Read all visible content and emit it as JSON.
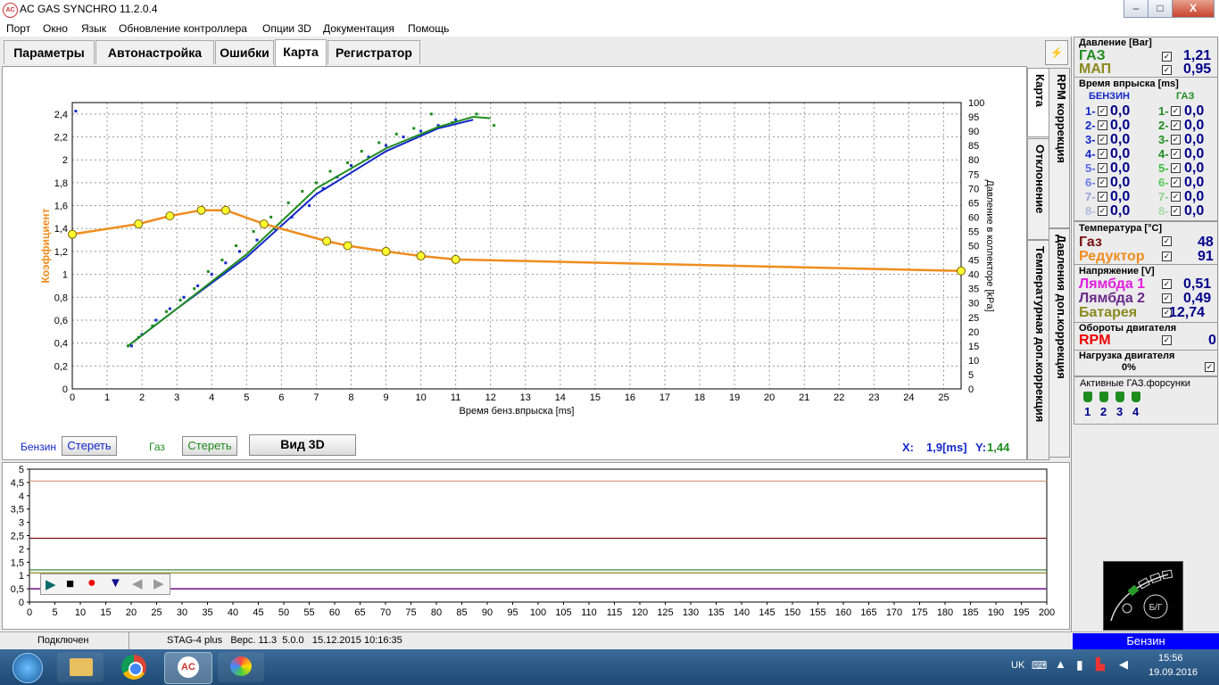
{
  "window": {
    "title": "AC GAS SYNCHRO  11.2.0.4",
    "icon": "ac-logo-icon",
    "min": "–",
    "max": "□",
    "close": "X"
  },
  "menu": [
    "Порт",
    "Окно",
    "Язык",
    "Обновление контроллера",
    "Опции 3D",
    "Документация",
    "Помощь"
  ],
  "tabs": [
    "Параметры",
    "Автонастройка",
    "Ошибки",
    "Карта",
    "Регистратор"
  ],
  "active_tab": "Карта",
  "side_tabs": [
    "Карта",
    "RPM коррекция",
    "Отклонение",
    "Давления доп.коррекция",
    "Температурная доп.коррекция"
  ],
  "chart": {
    "ylabel_left": "Коэффициент",
    "ylabel_right": "Давление в коллекторе [kPa]",
    "xlabel": "Время бенз.впрыска [ms]",
    "x_ticks": [
      "0",
      "1",
      "2",
      "3",
      "4",
      "5",
      "6",
      "7",
      "8",
      "9",
      "10",
      "11",
      "12",
      "13",
      "14",
      "15",
      "16",
      "17",
      "18",
      "19",
      "20",
      "21",
      "22",
      "23",
      "24",
      "25"
    ],
    "y_ticks": [
      "0",
      "0,2",
      "0,4",
      "0,6",
      "0,8",
      "1",
      "1,2",
      "1,4",
      "1,6",
      "1,8",
      "2",
      "2,2",
      "2,4"
    ],
    "y2_ticks": [
      "0",
      "5",
      "10",
      "15",
      "20",
      "25",
      "30",
      "35",
      "40",
      "45",
      "50",
      "55",
      "60",
      "65",
      "70",
      "75",
      "80",
      "85",
      "90",
      "95",
      "100"
    ],
    "cursor_label_x": "X:",
    "cursor_x": "1,9[ms]",
    "cursor_label_y": "Y:",
    "cursor_y": "1,44"
  },
  "chart_data": {
    "type": "line",
    "xlabel": "Время бенз.впрыска [ms]",
    "ylabel": "Коэффициент",
    "y2label": "Давление в коллекторе [kPa]",
    "xlim": [
      0,
      25.5
    ],
    "ylim": [
      0,
      2.5
    ],
    "y2lim": [
      0,
      100
    ],
    "grid": true,
    "series": [
      {
        "role": "coefficient",
        "color": "#f08c1e",
        "x": [
          0,
          1.9,
          2.8,
          3.7,
          4.4,
          5.5,
          7.3,
          7.9,
          9.0,
          10.0,
          11.0,
          25.5
        ],
        "y": [
          1.35,
          1.44,
          1.51,
          1.56,
          1.56,
          1.44,
          1.29,
          1.25,
          1.2,
          1.16,
          1.13,
          1.03
        ],
        "points": [
          [
            0,
            1.35
          ],
          [
            1.9,
            1.44
          ],
          [
            2.8,
            1.51
          ],
          [
            3.7,
            1.56
          ],
          [
            4.4,
            1.56
          ],
          [
            5.5,
            1.44
          ],
          [
            7.3,
            1.29
          ],
          [
            7.9,
            1.25
          ],
          [
            9.0,
            1.2
          ],
          [
            10.0,
            1.16
          ],
          [
            11.0,
            1.13
          ],
          [
            25.5,
            1.03
          ]
        ]
      },
      {
        "role": "benzin-trend",
        "color": "#1428c8",
        "x": [
          1.6,
          3,
          5,
          7,
          9,
          10.5,
          11.5
        ],
        "y": [
          15,
          28,
          46,
          68,
          83,
          91,
          94
        ]
      },
      {
        "role": "gas-trend",
        "color": "#1e8c1e",
        "x": [
          1.6,
          3,
          5,
          7,
          9,
          10.5,
          11.5,
          12.0
        ],
        "y": [
          15,
          28,
          47,
          70,
          84,
          91.5,
          95,
          94.5
        ]
      }
    ],
    "scatter_benzin": [
      [
        1.7,
        15
      ],
      [
        2.0,
        19
      ],
      [
        2.4,
        24
      ],
      [
        2.8,
        28
      ],
      [
        3.2,
        32
      ],
      [
        3.6,
        36
      ],
      [
        4.0,
        40
      ],
      [
        4.4,
        44
      ],
      [
        4.8,
        48
      ],
      [
        5.3,
        52
      ],
      [
        5.8,
        56
      ],
      [
        6.3,
        60
      ],
      [
        6.8,
        64
      ],
      [
        7.2,
        70
      ],
      [
        7.6,
        74
      ],
      [
        8.0,
        78
      ],
      [
        8.5,
        81
      ],
      [
        9.0,
        85
      ],
      [
        9.5,
        88
      ],
      [
        10.0,
        90
      ],
      [
        10.5,
        92
      ],
      [
        11.0,
        94
      ],
      [
        0.1,
        97
      ]
    ],
    "scatter_gas": [
      [
        1.6,
        15
      ],
      [
        1.9,
        18
      ],
      [
        2.3,
        22
      ],
      [
        2.7,
        27
      ],
      [
        3.1,
        31
      ],
      [
        3.5,
        35
      ],
      [
        3.9,
        41
      ],
      [
        4.3,
        45
      ],
      [
        4.7,
        50
      ],
      [
        5.2,
        55
      ],
      [
        5.7,
        60
      ],
      [
        6.2,
        65
      ],
      [
        6.6,
        69
      ],
      [
        7.0,
        72
      ],
      [
        7.4,
        76
      ],
      [
        7.9,
        79
      ],
      [
        8.3,
        83
      ],
      [
        8.8,
        86
      ],
      [
        9.3,
        89
      ],
      [
        9.8,
        91
      ],
      [
        10.3,
        96
      ],
      [
        10.9,
        93
      ],
      [
        11.6,
        96
      ],
      [
        12.1,
        92
      ]
    ]
  },
  "chart_controls": {
    "benzin_label": "Бензин",
    "benzin_clear": "Стереть",
    "gas_label": "Газ",
    "gas_clear": "Стереть",
    "view3d": "Вид 3D"
  },
  "bottom_plot": {
    "y_ticks": [
      "0",
      "0,5",
      "1",
      "1,5",
      "2",
      "2,5",
      "3",
      "3,5",
      "4",
      "4,5",
      "5"
    ],
    "x_ticks": [
      "0",
      "5",
      "10",
      "15",
      "20",
      "25",
      "30",
      "35",
      "40",
      "45",
      "50",
      "55",
      "60",
      "65",
      "70",
      "75",
      "80",
      "85",
      "90",
      "95",
      "100",
      "105",
      "110",
      "115",
      "120",
      "125",
      "130",
      "135",
      "140",
      "145",
      "150",
      "155",
      "160",
      "165",
      "170",
      "175",
      "180",
      "185",
      "190",
      "195",
      "200"
    ],
    "lines": [
      {
        "color": "#d9a080",
        "value": 4.55
      },
      {
        "color": "#7a1010",
        "value": 2.4
      },
      {
        "color": "#2a7a2a",
        "value": 1.21
      },
      {
        "color": "#8a8a20",
        "value": 1.1
      },
      {
        "color": "#b040b0",
        "value": 0.51
      },
      {
        "color": "#6a2a8a",
        "value": 0.49
      }
    ]
  },
  "player": [
    "play-icon",
    "stop-icon",
    "record-icon",
    "marker-icon",
    "prev-icon",
    "next-icon"
  ],
  "status": {
    "connection": "Подключен",
    "device": "STAG-4 plus   Верс. 11.3  5.0.0   15.12.2015 10:16:35",
    "fuel": "Бензин"
  },
  "right": {
    "pressure": {
      "title": "Давление [Bar]",
      "gas_label": "ГАЗ",
      "gas": "1,21",
      "map_label": "МАП",
      "map": "0,95"
    },
    "injection": {
      "title": "Время впрыска [ms]",
      "benzin": "БЕНЗИН",
      "gas": "ГАЗ",
      "rows": [
        {
          "n": "1-",
          "bv": "0,0",
          "gn": "1-",
          "gv": "0,0"
        },
        {
          "n": "2-",
          "bv": "0,0",
          "gn": "2-",
          "gv": "0,0"
        },
        {
          "n": "3-",
          "bv": "0,0",
          "gn": "3-",
          "gv": "0,0"
        },
        {
          "n": "4-",
          "bv": "0,0",
          "gn": "4-",
          "gv": "0,0"
        },
        {
          "n": "5-",
          "bv": "0,0",
          "gn": "5-",
          "gv": "0,0"
        },
        {
          "n": "6-",
          "bv": "0,0",
          "gn": "6-",
          "gv": "0,0"
        },
        {
          "n": "7-",
          "bv": "0,0",
          "gn": "7-",
          "gv": "0,0"
        },
        {
          "n": "8-",
          "bv": "0,0",
          "gn": "8-",
          "gv": "0,0"
        }
      ]
    },
    "temperature": {
      "title": "Температура  [°C]",
      "gas_label": "Газ",
      "gas": "48",
      "red_label": "Редуктор",
      "red": "91"
    },
    "voltage": {
      "title": "Напряжение [V]",
      "l1_label": "Лямбда 1",
      "l1": "0,51",
      "l2_label": "Лямбда 2",
      "l2": "0,49",
      "bat_label": "Батарея",
      "bat": "12,74"
    },
    "rpm": {
      "title": "Обороты двигателя",
      "label": "RPM",
      "value": "0"
    },
    "load": {
      "title": "Нагрузка двигателя",
      "value": "0%"
    },
    "injectors": {
      "title": "Активные ГАЗ.форсунки",
      "nums": [
        "1",
        "2",
        "3",
        "4"
      ]
    },
    "gauge_label": "Б/Г"
  },
  "taskbar": {
    "lang": "UK",
    "time": "15:56",
    "date": "19.09.2016"
  }
}
